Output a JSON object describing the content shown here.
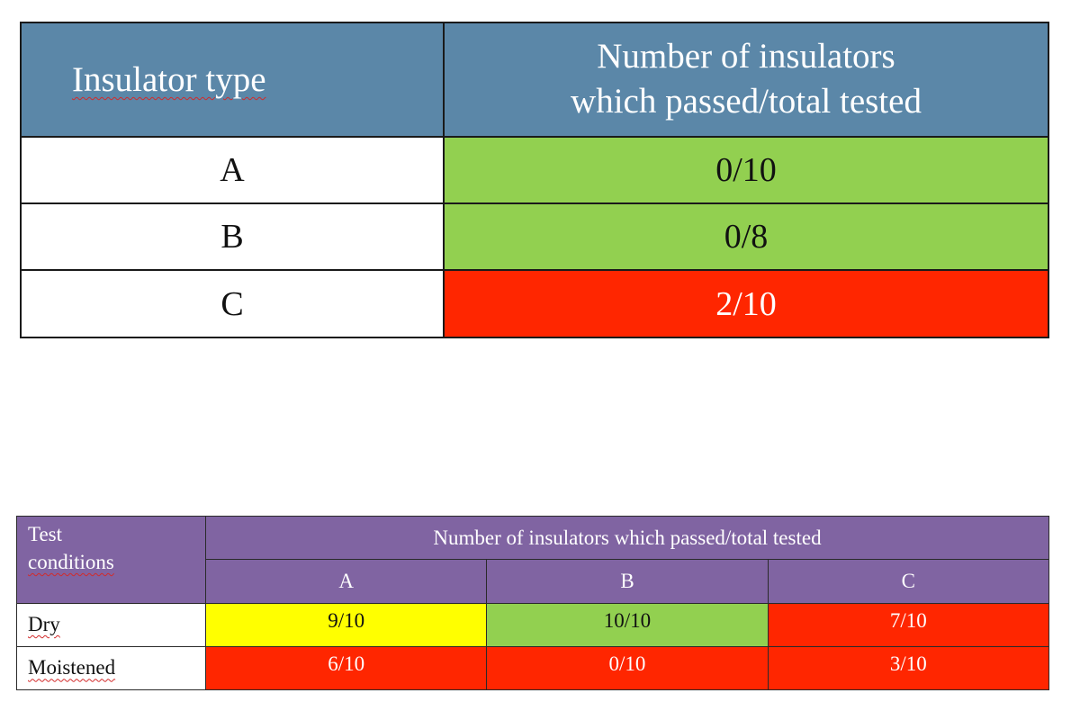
{
  "table1": {
    "header_type": "Insulator type",
    "header_number_line1": "Number of insulators",
    "header_number_line2": "which passed/total tested",
    "rows": [
      {
        "type": "A",
        "value": "0/10",
        "color": "#92d050"
      },
      {
        "type": "B",
        "value": "0/8",
        "color": "#92d050"
      },
      {
        "type": "C",
        "value": "2/10",
        "color": "#ff2600"
      }
    ]
  },
  "table2": {
    "header_conditions_line1": "Test",
    "header_conditions_line2": "conditions",
    "header_number": "Number of insulators which passed/total tested",
    "columns": [
      "A",
      "B",
      "C"
    ],
    "rows": [
      {
        "condition": "Dry",
        "values": [
          "9/10",
          "10/10",
          "7/10"
        ],
        "colors": [
          "#ffff00",
          "#92d050",
          "#ff2600"
        ]
      },
      {
        "condition": "Moistened",
        "values": [
          "6/10",
          "0/10",
          "3/10"
        ],
        "colors": [
          "#ff2600",
          "#ff2600",
          "#ff2600"
        ]
      }
    ]
  },
  "colors": {
    "table1_header": "#5b87a8",
    "table2_header": "#8064a2",
    "pass_green": "#92d050",
    "fail_red": "#ff2600",
    "partial_yellow": "#ffff00"
  }
}
